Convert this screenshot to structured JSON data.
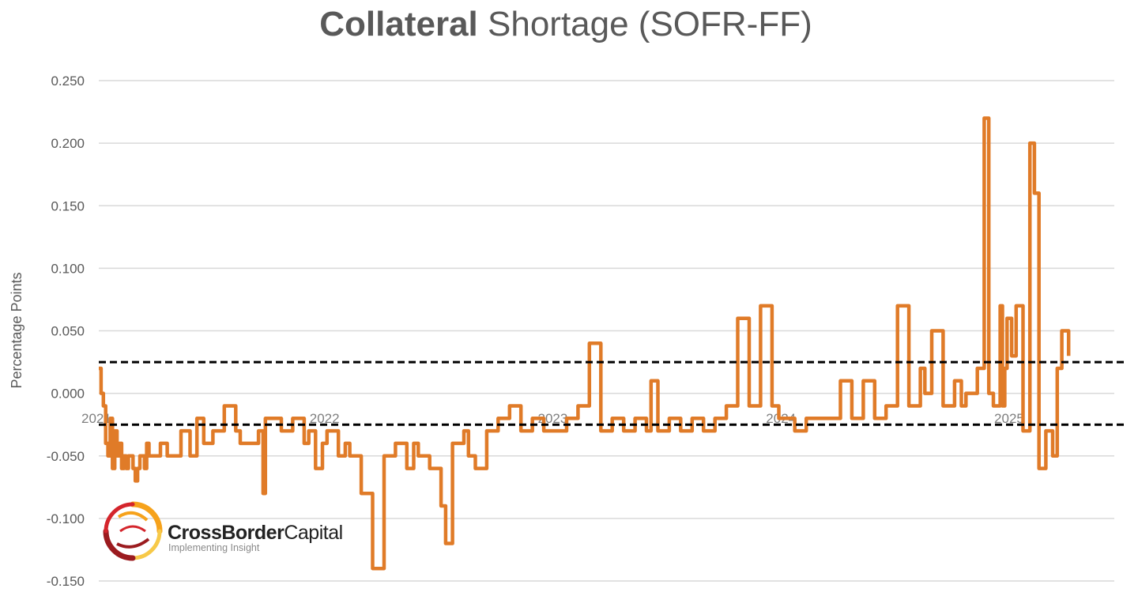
{
  "logo": {
    "name_bold": "CrossBorder",
    "name_regular": "Capital",
    "tagline": "Implementing Insight",
    "colors": [
      "#9b1b1f",
      "#d4252c",
      "#f6a21b",
      "#f7c948"
    ]
  },
  "chart_data": {
    "type": "line",
    "title_bold": "Collateral",
    "title_regular": "Shortage (SOFR-FF)",
    "xlabel": "",
    "ylabel": "Percentage Points",
    "ylim": [
      -0.15,
      0.25
    ],
    "yticks": [
      "0.250",
      "0.200",
      "0.150",
      "0.100",
      "0.050",
      "0.000",
      "-0.050",
      "-0.100",
      "-0.150"
    ],
    "ytick_values": [
      0.25,
      0.2,
      0.15,
      0.1,
      0.05,
      0.0,
      -0.05,
      -0.1,
      -0.15
    ],
    "xlim": [
      2021.0,
      2025.45
    ],
    "xticks": [
      "2021",
      "2022",
      "2023",
      "2024",
      "2025"
    ],
    "xtick_values": [
      2021,
      2022,
      2023,
      2024,
      2025
    ],
    "grid": true,
    "line_color": "#e07b28",
    "reference_lines": [
      {
        "y": 0.025,
        "style": "dashed",
        "color": "#000000"
      },
      {
        "y": -0.025,
        "style": "dashed",
        "color": "#000000"
      }
    ],
    "series": [
      {
        "x": [
          2021.0,
          2021.01,
          2021.02,
          2021.03,
          2021.04,
          2021.05,
          2021.06,
          2021.07,
          2021.08,
          2021.09,
          2021.1,
          2021.11,
          2021.12,
          2021.13,
          2021.14,
          2021.15,
          2021.16,
          2021.17,
          2021.18,
          2021.2,
          2021.21,
          2021.22,
          2021.25,
          2021.27,
          2021.3,
          2021.33,
          2021.36,
          2021.4,
          2021.43,
          2021.46,
          2021.5,
          2021.55,
          2021.6,
          2021.62,
          2021.7,
          2021.72,
          2021.73,
          2021.8,
          2021.85,
          2021.9,
          2021.92,
          2021.95,
          2021.98,
          2022.0,
          2022.05,
          2022.08,
          2022.1,
          2022.15,
          2022.2,
          2022.25,
          2022.3,
          2022.35,
          2022.38,
          2022.4,
          2022.45,
          2022.5,
          2022.52,
          2022.55,
          2022.6,
          2022.62,
          2022.65,
          2022.7,
          2022.75,
          2022.8,
          2022.85,
          2022.9,
          2022.95,
          2023.0,
          2023.05,
          2023.1,
          2023.15,
          2023.2,
          2023.25,
          2023.3,
          2023.35,
          2023.4,
          2023.42,
          2023.45,
          2023.5,
          2023.55,
          2023.6,
          2023.65,
          2023.7,
          2023.75,
          2023.8,
          2023.85,
          2023.9,
          2023.95,
          2023.98,
          2024.0,
          2024.05,
          2024.1,
          2024.15,
          2024.2,
          2024.25,
          2024.3,
          2024.35,
          2024.4,
          2024.45,
          2024.5,
          2024.55,
          2024.6,
          2024.62,
          2024.65,
          2024.7,
          2024.75,
          2024.78,
          2024.8,
          2024.85,
          2024.88,
          2024.9,
          2024.92,
          2024.95,
          2024.96,
          2024.97,
          2024.98,
          2025.0,
          2025.02,
          2025.05,
          2025.08,
          2025.1,
          2025.12,
          2025.15,
          2025.18,
          2025.2,
          2025.22,
          2025.25
        ],
        "y": [
          0.02,
          0.0,
          -0.01,
          -0.04,
          -0.05,
          -0.02,
          -0.06,
          -0.03,
          -0.05,
          -0.04,
          -0.06,
          -0.05,
          -0.06,
          -0.05,
          -0.05,
          -0.06,
          -0.07,
          -0.06,
          -0.05,
          -0.06,
          -0.04,
          -0.05,
          -0.05,
          -0.04,
          -0.05,
          -0.05,
          -0.03,
          -0.05,
          -0.02,
          -0.04,
          -0.03,
          -0.01,
          -0.03,
          -0.04,
          -0.03,
          -0.08,
          -0.02,
          -0.03,
          -0.02,
          -0.04,
          -0.03,
          -0.06,
          -0.04,
          -0.03,
          -0.05,
          -0.04,
          -0.05,
          -0.08,
          -0.14,
          -0.05,
          -0.04,
          -0.06,
          -0.04,
          -0.05,
          -0.06,
          -0.09,
          -0.12,
          -0.04,
          -0.03,
          -0.05,
          -0.06,
          -0.03,
          -0.02,
          -0.01,
          -0.03,
          -0.02,
          -0.03,
          -0.03,
          -0.02,
          -0.01,
          0.04,
          -0.03,
          -0.02,
          -0.03,
          -0.02,
          -0.03,
          0.01,
          -0.03,
          -0.02,
          -0.03,
          -0.02,
          -0.03,
          -0.02,
          -0.01,
          0.06,
          -0.01,
          0.07,
          -0.01,
          -0.02,
          -0.02,
          -0.03,
          -0.02,
          -0.02,
          -0.02,
          0.01,
          -0.02,
          0.01,
          -0.02,
          -0.01,
          0.07,
          -0.01,
          0.02,
          0.0,
          0.05,
          -0.01,
          0.01,
          -0.01,
          0.0,
          0.02,
          0.22,
          0.0,
          -0.01,
          0.07,
          -0.01,
          0.02,
          0.06,
          0.03,
          0.07,
          -0.03,
          0.2,
          0.16,
          -0.06,
          -0.03,
          -0.05,
          0.02,
          0.05,
          0.03
        ]
      }
    ]
  }
}
